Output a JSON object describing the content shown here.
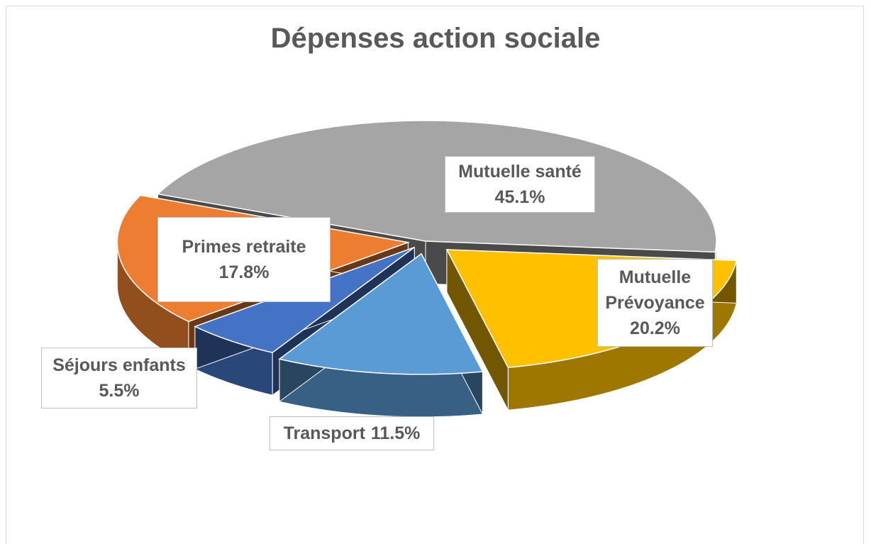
{
  "chart_data": {
    "type": "pie3d",
    "title": "Dépenses action sociale",
    "categories": [
      "Mutuelle santé",
      "Mutuelle Prévoyance",
      "Transport",
      "Séjours enfants",
      "Primes retraite"
    ],
    "values": [
      45.1,
      20.2,
      11.5,
      5.5,
      17.8
    ],
    "value_labels": [
      "45.1%",
      "20.2%",
      "11.5%",
      "5.5%",
      "17.8%"
    ],
    "colors": [
      "#a5a5a5",
      "#ffc000",
      "#5b9bd5",
      "#4472c4",
      "#ed7d31"
    ]
  }
}
